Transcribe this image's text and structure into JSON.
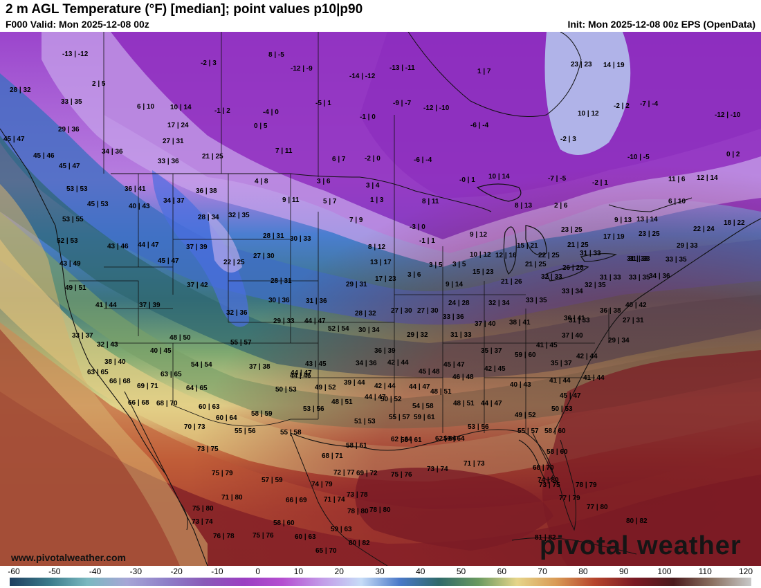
{
  "header": {
    "title": "2 m AGL Temperature (°F) [median]; point values p10|p90",
    "valid": "F000 Valid: Mon 2025-12-08 00z",
    "init": "Init: Mon 2025-12-08 00z EPS (OpenData)"
  },
  "branding": {
    "url": "www.pivotalweather.com",
    "logo": "pivotal weather"
  },
  "colorbar": {
    "unit": "°F",
    "ticks": [
      "-60",
      "-50",
      "-40",
      "-30",
      "-20",
      "-10",
      "0",
      "10",
      "20",
      "30",
      "40",
      "50",
      "60",
      "70",
      "80",
      "90",
      "100",
      "110",
      "120"
    ],
    "stops": [
      "#1f3f60",
      "#3a7a8a",
      "#7ab8c0",
      "#a7a6d6",
      "#8f7fc8",
      "#8a5ab8",
      "#9b3fc2",
      "#b54fd0",
      "#c39be8",
      "#c6dcf7",
      "#4a78c8",
      "#2f6a6a",
      "#6a9a60",
      "#e6d58a",
      "#d99a55",
      "#b5442c",
      "#7a1a24",
      "#4a1a1c",
      "#8a7060",
      "#c9c9c9"
    ]
  },
  "point_values": [
    {
      "label": "-13 | -12"
    },
    {
      "label": "-2 | 3"
    },
    {
      "label": "8 | -5"
    },
    {
      "label": "-12 | -9"
    },
    {
      "label": "-14 | -12"
    },
    {
      "label": "-13 | -11"
    },
    {
      "label": "1 | 7"
    },
    {
      "label": "23 | 23"
    },
    {
      "label": "14 | 19"
    },
    {
      "label": "28 | 32"
    },
    {
      "label": "2 | 5"
    },
    {
      "label": "33 | 35"
    },
    {
      "label": "6 | 10"
    },
    {
      "label": "10 | 14"
    },
    {
      "label": "-1 | 2"
    },
    {
      "label": "-4 | 0"
    },
    {
      "label": "-5 | 1"
    },
    {
      "label": "-9 | -7"
    },
    {
      "label": "-12 | -10"
    },
    {
      "label": "10 | 12"
    },
    {
      "label": "-2 | 2"
    },
    {
      "label": "-7 | -4"
    },
    {
      "label": "-12 | -10"
    },
    {
      "label": "29 | 36"
    },
    {
      "label": "17 | 24"
    },
    {
      "label": "0 | 5"
    },
    {
      "label": "-1 | 0"
    },
    {
      "label": "-6 | -4"
    },
    {
      "label": "-2 | 3"
    },
    {
      "label": "45 | 47"
    },
    {
      "label": "27 | 31"
    },
    {
      "label": "7 | 11"
    },
    {
      "label": "-10 | -5"
    },
    {
      "label": "0 | 2"
    },
    {
      "label": "34 | 36"
    },
    {
      "label": "45 | 46"
    },
    {
      "label": "33 | 36"
    },
    {
      "label": "21 | 25"
    },
    {
      "label": "6 | 7"
    },
    {
      "label": "-2 | 0"
    },
    {
      "label": "-6 | -4"
    },
    {
      "label": "45 | 47"
    },
    {
      "label": "-0 | 1"
    },
    {
      "label": "10 | 14"
    },
    {
      "label": "-7 | -5"
    },
    {
      "label": "-2 | 1"
    },
    {
      "label": "11 | 6"
    },
    {
      "label": "12 | 14"
    },
    {
      "label": "53 | 53"
    },
    {
      "label": "36 | 41"
    },
    {
      "label": "4 | 8"
    },
    {
      "label": "3 | 6"
    },
    {
      "label": "3 | 4"
    },
    {
      "label": "34 | 37"
    },
    {
      "label": "36 | 38"
    },
    {
      "label": "9 | 11"
    },
    {
      "label": "5 | 7"
    },
    {
      "label": "1 | 3"
    },
    {
      "label": "8 | 11"
    },
    {
      "label": "6 | 10"
    },
    {
      "label": "45 | 53"
    },
    {
      "label": "40 | 43"
    },
    {
      "label": "8 | 13"
    },
    {
      "label": "2 | 6"
    },
    {
      "label": "53 | 55"
    },
    {
      "label": "28 | 34"
    },
    {
      "label": "32 | 35"
    },
    {
      "label": "7 | 9"
    },
    {
      "label": "-3 | 0"
    },
    {
      "label": "9 | 13"
    },
    {
      "label": "13 | 14"
    },
    {
      "label": "22 | 24"
    },
    {
      "label": "18 | 22"
    },
    {
      "label": "52 | 53"
    },
    {
      "label": "28 | 31"
    },
    {
      "label": "30 | 33"
    },
    {
      "label": "9 | 12"
    },
    {
      "label": "23 | 25"
    },
    {
      "label": "23 | 25"
    },
    {
      "label": "17 | 19"
    },
    {
      "label": "43 | 46"
    },
    {
      "label": "44 | 47"
    },
    {
      "label": "37 | 39"
    },
    {
      "label": "-1 | 1"
    },
    {
      "label": "15 | 21"
    },
    {
      "label": "21 | 25"
    },
    {
      "label": "29 | 33"
    },
    {
      "label": "8 | 12"
    },
    {
      "label": "31 | 33"
    },
    {
      "label": "12 | 16"
    },
    {
      "label": "10 | 12"
    },
    {
      "label": "22 | 25"
    },
    {
      "label": "31 | 33"
    },
    {
      "label": "43 | 49"
    },
    {
      "label": "45 | 47"
    },
    {
      "label": "22 | 25"
    },
    {
      "label": "27 | 30"
    },
    {
      "label": "13 | 17"
    },
    {
      "label": "3 | 5"
    },
    {
      "label": "3 | 5"
    },
    {
      "label": "21 | 25"
    },
    {
      "label": "26 | 28"
    },
    {
      "label": "31 | 33"
    },
    {
      "label": "33 | 35"
    },
    {
      "label": "49 | 51"
    },
    {
      "label": "37 | 42"
    },
    {
      "label": "28 | 31"
    },
    {
      "label": "29 | 31"
    },
    {
      "label": "17 | 23"
    },
    {
      "label": "3 | 6"
    },
    {
      "label": "15 | 23"
    },
    {
      "label": "32 | 33"
    },
    {
      "label": "31 | 33"
    },
    {
      "label": "33 | 35"
    },
    {
      "label": "9 | 14"
    },
    {
      "label": "21 | 26"
    },
    {
      "label": "32 | 35"
    },
    {
      "label": "34 | 36"
    },
    {
      "label": "41 | 44"
    },
    {
      "label": "37 | 39"
    },
    {
      "label": "30 | 36"
    },
    {
      "label": "31 | 36"
    },
    {
      "label": "24 | 28"
    },
    {
      "label": "32 | 34"
    },
    {
      "label": "33 | 35"
    },
    {
      "label": "33 | 34"
    },
    {
      "label": "36 | 38"
    },
    {
      "label": "40 | 42"
    },
    {
      "label": "32 | 36"
    },
    {
      "label": "28 | 32"
    },
    {
      "label": "27 | 30"
    },
    {
      "label": "27 | 30"
    },
    {
      "label": "33 | 36"
    },
    {
      "label": "44 | 47"
    },
    {
      "label": "29 | 33"
    },
    {
      "label": "31 | 33"
    },
    {
      "label": "36 | 41"
    },
    {
      "label": "27 | 31"
    },
    {
      "label": "33 | 37"
    },
    {
      "label": "52 | 54"
    },
    {
      "label": "30 | 34"
    },
    {
      "label": "29 | 32"
    },
    {
      "label": "31 | 33"
    },
    {
      "label": "37 | 40"
    },
    {
      "label": "38 | 41"
    },
    {
      "label": "37 | 40"
    },
    {
      "label": "29 | 34"
    },
    {
      "label": "32 | 43"
    },
    {
      "label": "48 | 50"
    },
    {
      "label": "55 | 57"
    },
    {
      "label": "36 | 39"
    },
    {
      "label": "35 | 37"
    },
    {
      "label": "41 | 45"
    },
    {
      "label": "40 | 45"
    },
    {
      "label": "59 | 60"
    },
    {
      "label": "42 | 44"
    },
    {
      "label": "38 | 40"
    },
    {
      "label": "54 | 54"
    },
    {
      "label": "37 | 38"
    },
    {
      "label": "43 | 45"
    },
    {
      "label": "44 | 47"
    },
    {
      "label": "34 | 36"
    },
    {
      "label": "42 | 44"
    },
    {
      "label": "45 | 47"
    },
    {
      "label": "35 | 37"
    },
    {
      "label": "63 | 65"
    },
    {
      "label": "63 | 65"
    },
    {
      "label": "45 | 48"
    },
    {
      "label": "42 | 45"
    },
    {
      "label": "66 | 68"
    },
    {
      "label": "44 | 46"
    },
    {
      "label": "39 | 44"
    },
    {
      "label": "46 | 48"
    },
    {
      "label": "41 | 44"
    },
    {
      "label": "41 | 44"
    },
    {
      "label": "69 | 71"
    },
    {
      "label": "64 | 65"
    },
    {
      "label": "50 | 53"
    },
    {
      "label": "49 | 52"
    },
    {
      "label": "42 | 44"
    },
    {
      "label": "48 | 51"
    },
    {
      "label": "44 | 47"
    },
    {
      "label": "40 | 43"
    },
    {
      "label": "45 | 47"
    },
    {
      "label": "66 | 68"
    },
    {
      "label": "68 | 70"
    },
    {
      "label": "60 | 63"
    },
    {
      "label": "44 | 47"
    },
    {
      "label": "50 | 52"
    },
    {
      "label": "48 | 51"
    },
    {
      "label": "44 | 47"
    },
    {
      "label": "48 | 51"
    },
    {
      "label": "53 | 56"
    },
    {
      "label": "54 | 58"
    },
    {
      "label": "50 | 53"
    },
    {
      "label": "58 | 59"
    },
    {
      "label": "49 | 52"
    },
    {
      "label": "60 | 64"
    },
    {
      "label": "55 | 57"
    },
    {
      "label": "59 | 61"
    },
    {
      "label": "51 | 53"
    },
    {
      "label": "70 | 73"
    },
    {
      "label": "55 | 56"
    },
    {
      "label": "55 | 58"
    },
    {
      "label": "53 | 56"
    },
    {
      "label": "55 | 57"
    },
    {
      "label": "58 | 60"
    },
    {
      "label": "62 | 64"
    },
    {
      "label": "58 | 61"
    },
    {
      "label": "59 | 64"
    },
    {
      "label": "73 | 75"
    },
    {
      "label": "58 | 61"
    },
    {
      "label": "62 | 64"
    },
    {
      "label": "58 | 60"
    },
    {
      "label": "68 | 71"
    },
    {
      "label": "71 | 73"
    },
    {
      "label": "75 | 79"
    },
    {
      "label": "72 | 77"
    },
    {
      "label": "69 | 72"
    },
    {
      "label": "75 | 76"
    },
    {
      "label": "73 | 74"
    },
    {
      "label": "68 | 70"
    },
    {
      "label": "74 | 80"
    },
    {
      "label": "57 | 59"
    },
    {
      "label": "74 | 79"
    },
    {
      "label": "73 | 75"
    },
    {
      "label": "78 | 79"
    },
    {
      "label": "71 | 80"
    },
    {
      "label": "71 | 74"
    },
    {
      "label": "73 | 78"
    },
    {
      "label": "77 | 79"
    },
    {
      "label": "66 | 69"
    },
    {
      "label": "75 | 80"
    },
    {
      "label": "78 | 80"
    },
    {
      "label": "77 | 80"
    },
    {
      "label": "78 | 80"
    },
    {
      "label": "73 | 74"
    },
    {
      "label": "58 | 60"
    },
    {
      "label": "59 | 63"
    },
    {
      "label": "80 | 82"
    },
    {
      "label": "76 | 78"
    },
    {
      "label": "75 | 76"
    },
    {
      "label": "60 | 63"
    },
    {
      "label": "80 | 82"
    },
    {
      "label": "81 | 82"
    },
    {
      "label": "65 | 70"
    }
  ]
}
